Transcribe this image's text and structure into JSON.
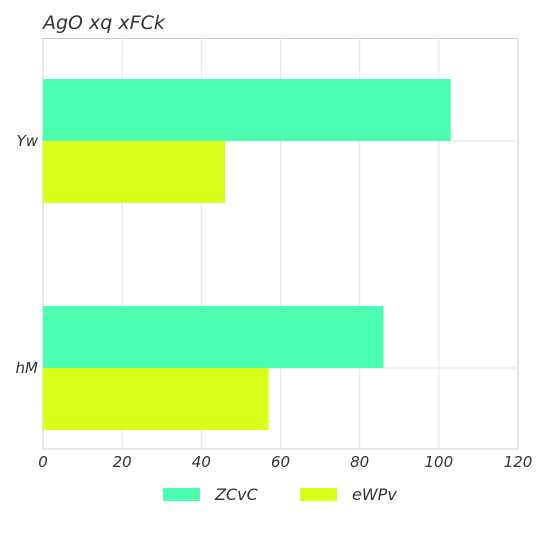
{
  "chart_data": {
    "type": "bar",
    "orientation": "horizontal",
    "title": "AgO  xq  xFCk",
    "xlabel": "",
    "ylabel": "",
    "categories": [
      "Yw",
      "hM"
    ],
    "series": [
      {
        "name": "ZCvC",
        "values": [
          103,
          86
        ],
        "color": "#4cffb0"
      },
      {
        "name": "eWPv",
        "values": [
          46,
          57
        ],
        "color": "#d9ff1a"
      }
    ],
    "xlim": [
      0,
      120
    ],
    "x_ticks": [
      0,
      20,
      40,
      60,
      80,
      100,
      120
    ],
    "grid": true,
    "legend_position": "bottom-center"
  }
}
